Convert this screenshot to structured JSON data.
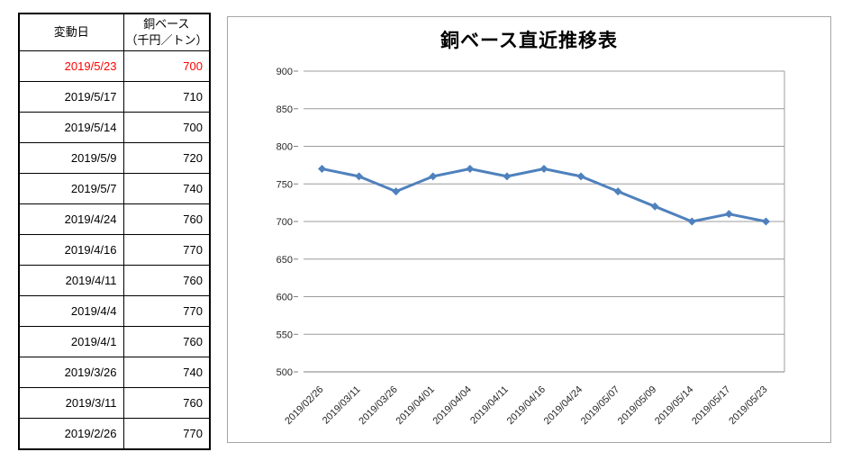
{
  "table": {
    "header": {
      "date_label": "変動日",
      "value_label_line1": "銅ベース",
      "value_label_line2": "（千円／トン）"
    },
    "rows": [
      {
        "date": "2019/5/23",
        "value": "700",
        "highlight": true
      },
      {
        "date": "2019/5/17",
        "value": "710",
        "highlight": false
      },
      {
        "date": "2019/5/14",
        "value": "700",
        "highlight": false
      },
      {
        "date": "2019/5/9",
        "value": "720",
        "highlight": false
      },
      {
        "date": "2019/5/7",
        "value": "740",
        "highlight": false
      },
      {
        "date": "2019/4/24",
        "value": "760",
        "highlight": false
      },
      {
        "date": "2019/4/16",
        "value": "770",
        "highlight": false
      },
      {
        "date": "2019/4/11",
        "value": "760",
        "highlight": false
      },
      {
        "date": "2019/4/4",
        "value": "770",
        "highlight": false
      },
      {
        "date": "2019/4/1",
        "value": "760",
        "highlight": false
      },
      {
        "date": "2019/3/26",
        "value": "740",
        "highlight": false
      },
      {
        "date": "2019/3/11",
        "value": "760",
        "highlight": false
      },
      {
        "date": "2019/2/26",
        "value": "770",
        "highlight": false
      }
    ],
    "highlight_color": "#ff0000"
  },
  "chart_data": {
    "type": "line",
    "title": "銅ベース直近推移表",
    "categories": [
      "2019/02/26",
      "2019/03/11",
      "2019/03/26",
      "2019/04/01",
      "2019/04/04",
      "2019/04/11",
      "2019/04/16",
      "2019/04/24",
      "2019/05/07",
      "2019/05/09",
      "2019/05/14",
      "2019/05/17",
      "2019/05/23"
    ],
    "values": [
      770,
      760,
      740,
      760,
      770,
      760,
      770,
      760,
      740,
      720,
      700,
      710,
      700
    ],
    "xlabel": "",
    "ylabel": "",
    "ylim": [
      500,
      900
    ],
    "ytick_step": 50,
    "grid": true,
    "legend": "none",
    "marker": "diamond",
    "line_color": "#4f81bd",
    "grid_color": "#9c9c9c",
    "axis_color": "#7f7f7f",
    "tick_label_color": "#262626",
    "chart_border_color": "#a6a6a6"
  }
}
